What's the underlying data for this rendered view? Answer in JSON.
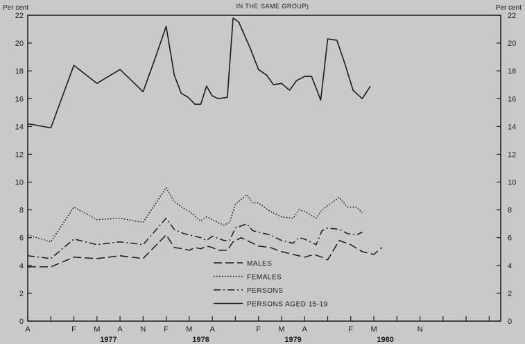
{
  "chart_data": {
    "type": "line",
    "header_fragment": "IN THE SAME GROUP)",
    "y_unit_left": "Per cent",
    "y_unit_right": "Per cent",
    "ylim": [
      0,
      22
    ],
    "yticks": [
      0,
      2,
      4,
      6,
      8,
      10,
      12,
      14,
      16,
      18,
      20,
      22
    ],
    "xlim": [
      0,
      41
    ],
    "x_tick_labels": [
      {
        "x": 0,
        "label": "A"
      },
      {
        "x": 4,
        "label": "F"
      },
      {
        "x": 6,
        "label": "M"
      },
      {
        "x": 8,
        "label": "A"
      },
      {
        "x": 10,
        "label": "N"
      },
      {
        "x": 12,
        "label": "F"
      },
      {
        "x": 14,
        "label": "M"
      },
      {
        "x": 16,
        "label": "A"
      },
      {
        "x": 20,
        "label": "F"
      },
      {
        "x": 22,
        "label": "M"
      },
      {
        "x": 24,
        "label": "A"
      },
      {
        "x": 28,
        "label": "F"
      },
      {
        "x": 30,
        "label": "M"
      },
      {
        "x": 34,
        "label": "N"
      }
    ],
    "x_minor_ticks": [
      2,
      18,
      26,
      32,
      36,
      38,
      40
    ],
    "year_labels": [
      {
        "x": 7,
        "label": "1977"
      },
      {
        "x": 15,
        "label": "1978"
      },
      {
        "x": 23,
        "label": "1979"
      },
      {
        "x": 31,
        "label": "1980"
      }
    ],
    "grid": false,
    "legend_position": "bottom-center",
    "series": [
      {
        "name": "MALES",
        "style": "dashed",
        "points": [
          [
            0,
            3.9
          ],
          [
            2,
            3.9
          ],
          [
            4,
            4.6
          ],
          [
            6,
            4.5
          ],
          [
            8,
            4.7
          ],
          [
            10,
            4.5
          ],
          [
            12,
            6.2
          ],
          [
            12.7,
            5.3
          ],
          [
            13.5,
            5.2
          ],
          [
            14,
            5.1
          ],
          [
            14.5,
            5.3
          ],
          [
            15,
            5.2
          ],
          [
            15.5,
            5.4
          ],
          [
            16,
            5.3
          ],
          [
            16.5,
            5.1
          ],
          [
            17.3,
            5.1
          ],
          [
            17.8,
            5.7
          ],
          [
            18.5,
            6.0
          ],
          [
            19.5,
            5.6
          ],
          [
            20,
            5.4
          ],
          [
            21,
            5.3
          ],
          [
            22,
            5.0
          ],
          [
            23,
            4.8
          ],
          [
            24,
            4.6
          ],
          [
            24.8,
            4.8
          ],
          [
            25.5,
            4.6
          ],
          [
            26,
            4.4
          ],
          [
            27,
            5.8
          ],
          [
            28,
            5.5
          ],
          [
            29,
            5.0
          ],
          [
            30,
            4.8
          ],
          [
            30.7,
            5.3
          ]
        ]
      },
      {
        "name": "FEMALES",
        "style": "dotted",
        "points": [
          [
            0,
            6.2
          ],
          [
            2,
            5.7
          ],
          [
            4,
            8.2
          ],
          [
            6,
            7.3
          ],
          [
            8,
            7.4
          ],
          [
            10,
            7.1
          ],
          [
            12,
            9.6
          ],
          [
            12.7,
            8.6
          ],
          [
            13.5,
            8.1
          ],
          [
            14,
            7.9
          ],
          [
            15,
            7.2
          ],
          [
            15.5,
            7.5
          ],
          [
            16,
            7.3
          ],
          [
            17,
            6.9
          ],
          [
            17.5,
            7.1
          ],
          [
            18,
            8.4
          ],
          [
            19,
            9.1
          ],
          [
            19.5,
            8.5
          ],
          [
            20,
            8.5
          ],
          [
            21,
            7.9
          ],
          [
            22,
            7.5
          ],
          [
            23,
            7.4
          ],
          [
            23.5,
            8.0
          ],
          [
            24,
            7.9
          ],
          [
            25,
            7.4
          ],
          [
            25.5,
            8.0
          ],
          [
            26,
            8.3
          ],
          [
            27,
            8.9
          ],
          [
            27.7,
            8.2
          ],
          [
            28.5,
            8.2
          ],
          [
            29,
            7.8
          ]
        ]
      },
      {
        "name": "PERSONS",
        "style": "dashdot",
        "points": [
          [
            0,
            4.7
          ],
          [
            2,
            4.5
          ],
          [
            4,
            5.9
          ],
          [
            6,
            5.5
          ],
          [
            8,
            5.7
          ],
          [
            10,
            5.5
          ],
          [
            12,
            7.4
          ],
          [
            12.7,
            6.6
          ],
          [
            13.5,
            6.3
          ],
          [
            14,
            6.2
          ],
          [
            15,
            6.0
          ],
          [
            15.5,
            5.8
          ],
          [
            16,
            6.1
          ],
          [
            17,
            5.8
          ],
          [
            17.5,
            5.8
          ],
          [
            18,
            6.7
          ],
          [
            19,
            7.0
          ],
          [
            19.5,
            6.5
          ],
          [
            20,
            6.4
          ],
          [
            21,
            6.2
          ],
          [
            22,
            5.8
          ],
          [
            23,
            5.6
          ],
          [
            23.5,
            6.0
          ],
          [
            24,
            5.9
          ],
          [
            25,
            5.5
          ],
          [
            25.5,
            6.5
          ],
          [
            26,
            6.7
          ],
          [
            27,
            6.6
          ],
          [
            27.7,
            6.3
          ],
          [
            28.5,
            6.2
          ],
          [
            29,
            6.4
          ]
        ]
      },
      {
        "name": "PERSONS AGED 15-19",
        "style": "solid",
        "points": [
          [
            0,
            14.2
          ],
          [
            2,
            13.9
          ],
          [
            4,
            18.4
          ],
          [
            6,
            17.1
          ],
          [
            8,
            18.1
          ],
          [
            9,
            17.3
          ],
          [
            10,
            16.5
          ],
          [
            11,
            18.8
          ],
          [
            12,
            21.2
          ],
          [
            12.7,
            17.7
          ],
          [
            13.3,
            16.4
          ],
          [
            13.9,
            16.1
          ],
          [
            14.5,
            15.6
          ],
          [
            15,
            15.6
          ],
          [
            15.5,
            16.9
          ],
          [
            16,
            16.2
          ],
          [
            16.5,
            16.0
          ],
          [
            17.3,
            16.1
          ],
          [
            17.8,
            21.8
          ],
          [
            18.3,
            21.5
          ],
          [
            19.3,
            19.6
          ],
          [
            20,
            18.1
          ],
          [
            20.7,
            17.7
          ],
          [
            21.3,
            17.0
          ],
          [
            22,
            17.1
          ],
          [
            22.7,
            16.6
          ],
          [
            23.3,
            17.3
          ],
          [
            24,
            17.6
          ],
          [
            24.6,
            17.6
          ],
          [
            25.4,
            15.9
          ],
          [
            26,
            20.3
          ],
          [
            26.8,
            20.2
          ],
          [
            27.5,
            18.5
          ],
          [
            28.2,
            16.6
          ],
          [
            29,
            16.0
          ],
          [
            29.7,
            16.9
          ]
        ]
      }
    ]
  }
}
